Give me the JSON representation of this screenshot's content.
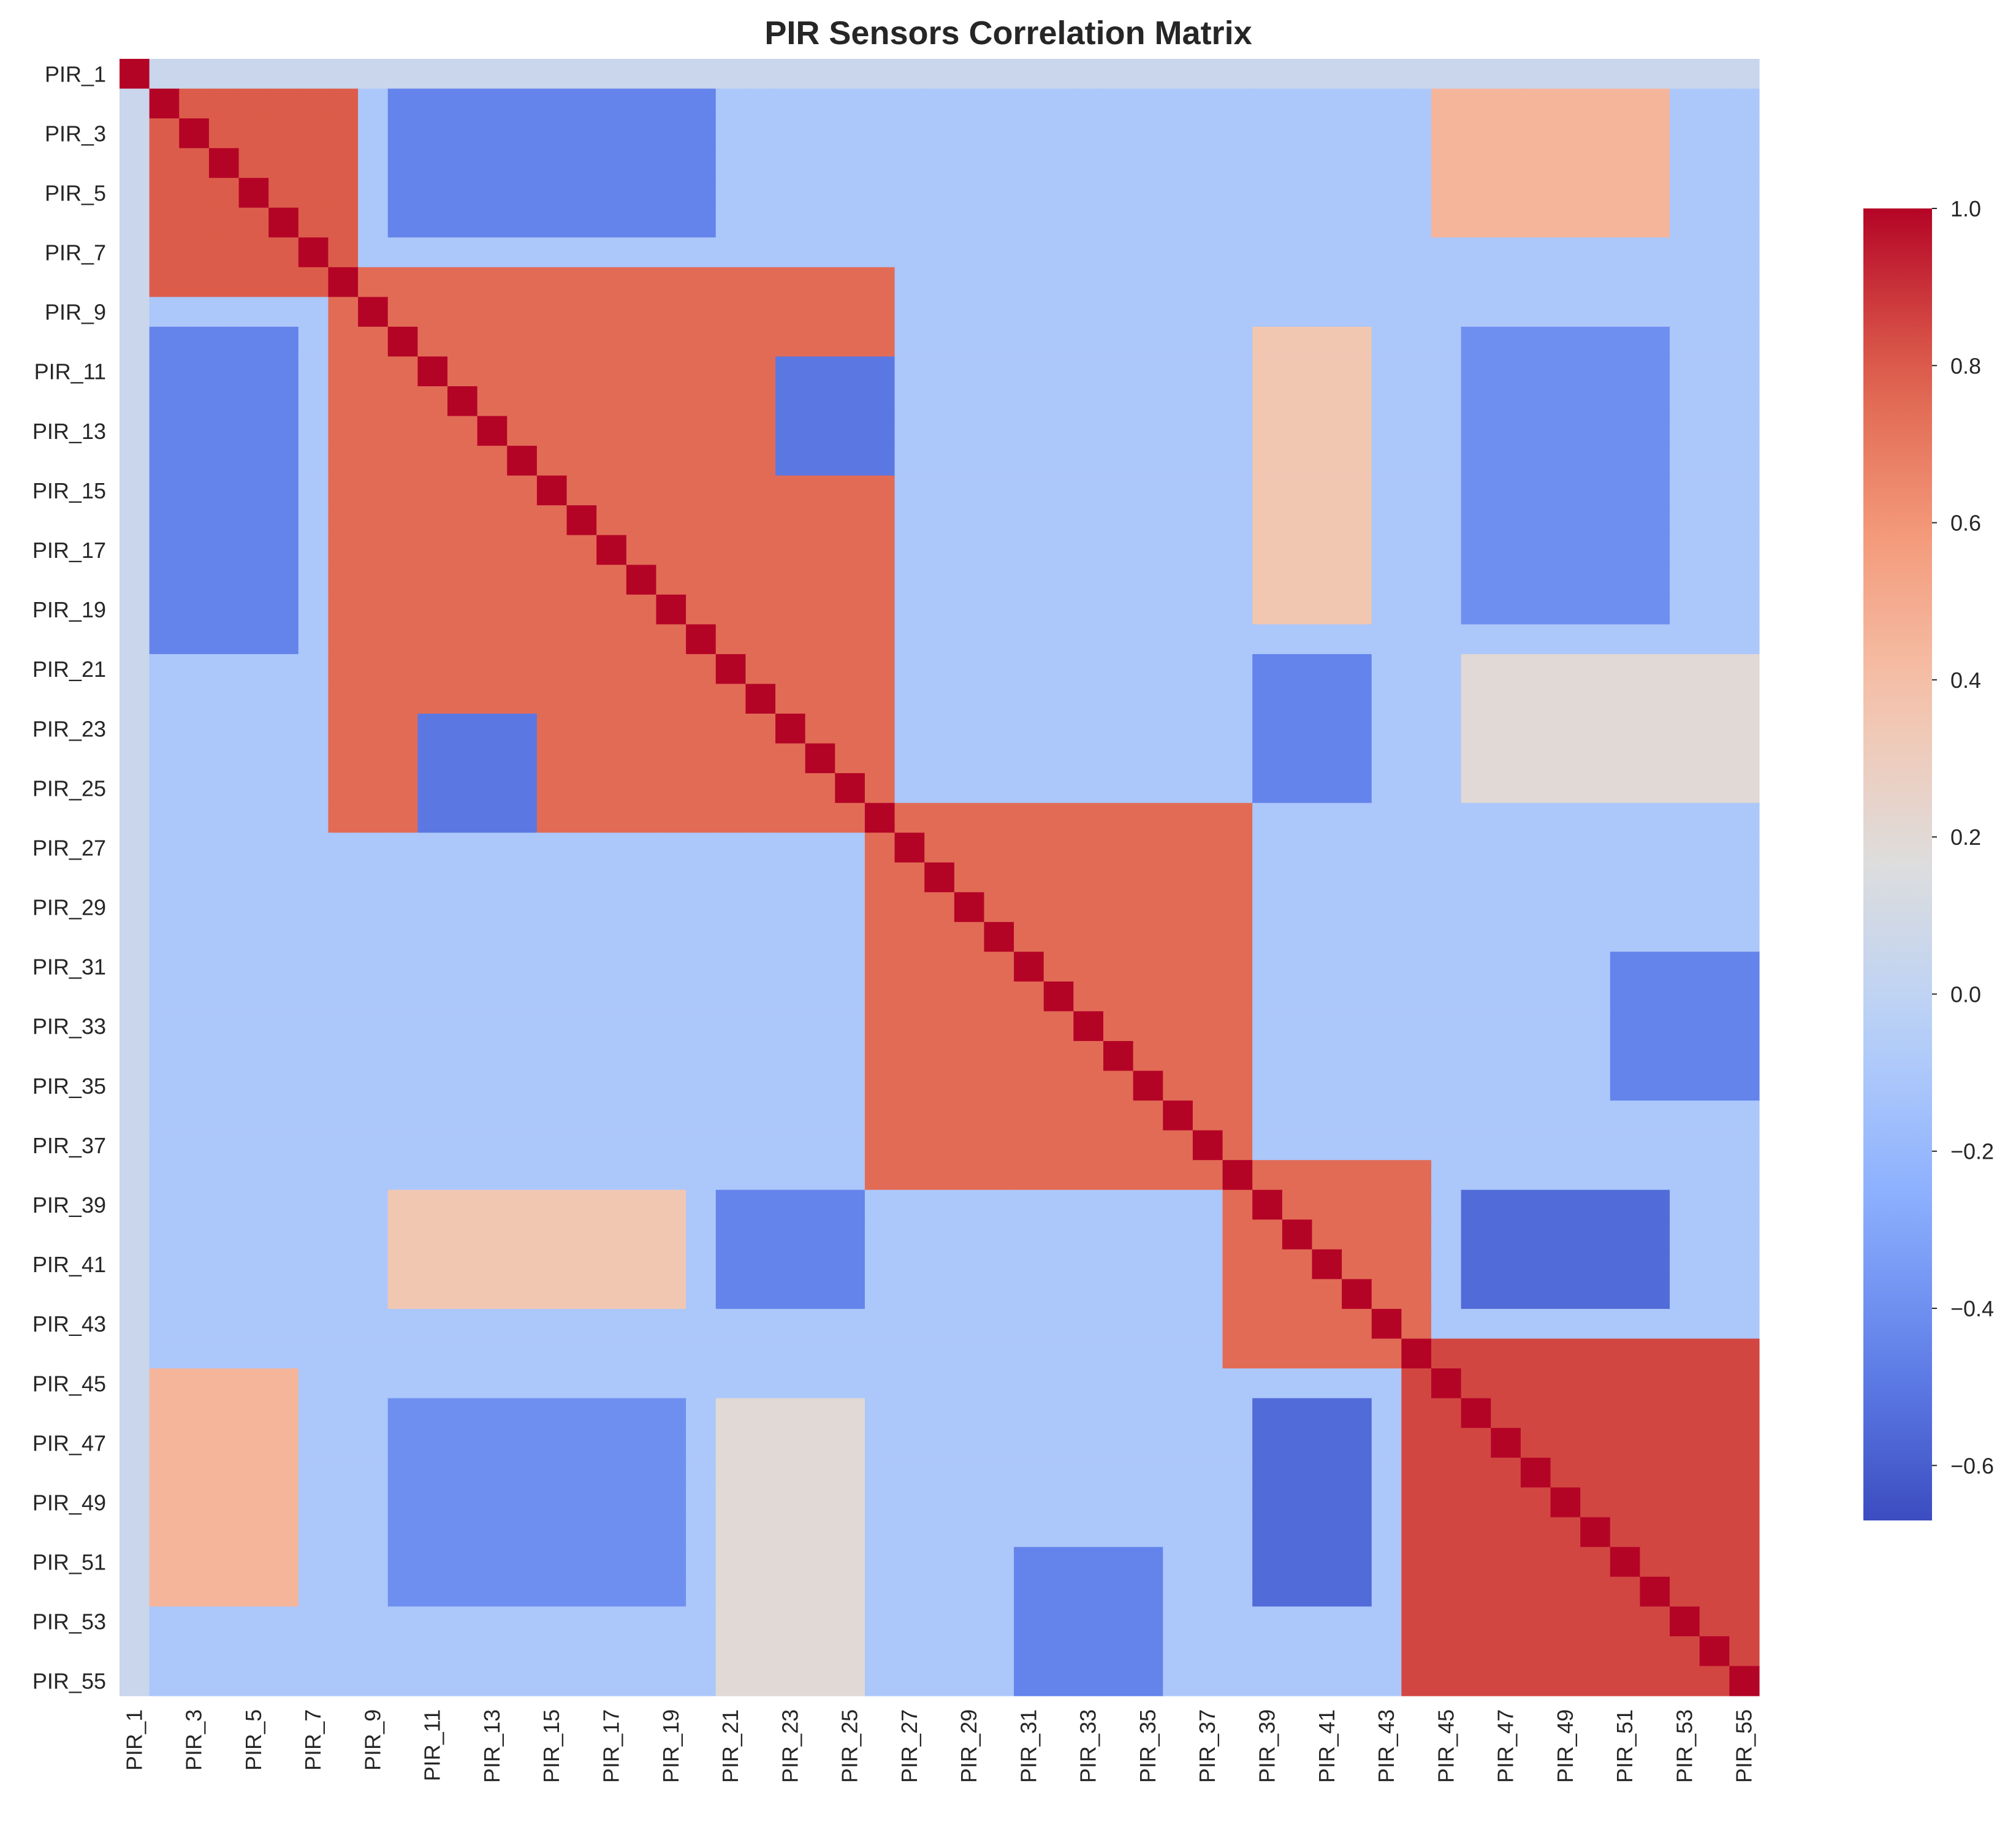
{
  "chart_data": {
    "type": "heatmap",
    "title": "PIR Sensors Correlation Matrix",
    "xlabel": "",
    "ylabel": "",
    "colormap": "coolwarm",
    "colorbar": {
      "vmin": -0.67,
      "vmax": 1.0,
      "ticks": [
        1.0,
        0.8,
        0.6,
        0.4,
        0.2,
        0.0,
        -0.2,
        -0.4,
        -0.6
      ],
      "tick_labels": [
        "1.0",
        "0.8",
        "0.6",
        "0.4",
        "0.2",
        "0.0",
        "−0.2",
        "−0.4",
        "−0.6"
      ]
    },
    "row_count": 55,
    "column_count": 55,
    "labels": [
      "PIR_1",
      "PIR_2",
      "PIR_3",
      "PIR_4",
      "PIR_5",
      "PIR_6",
      "PIR_7",
      "PIR_8",
      "PIR_9",
      "PIR_10",
      "PIR_11",
      "PIR_12",
      "PIR_13",
      "PIR_14",
      "PIR_15",
      "PIR_16",
      "PIR_17",
      "PIR_18",
      "PIR_19",
      "PIR_20",
      "PIR_21",
      "PIR_22",
      "PIR_23",
      "PIR_24",
      "PIR_25",
      "PIR_26",
      "PIR_27",
      "PIR_28",
      "PIR_29",
      "PIR_30",
      "PIR_31",
      "PIR_32",
      "PIR_33",
      "PIR_34",
      "PIR_35",
      "PIR_36",
      "PIR_37",
      "PIR_38",
      "PIR_39",
      "PIR_40",
      "PIR_41",
      "PIR_42",
      "PIR_43",
      "PIR_44",
      "PIR_45",
      "PIR_46",
      "PIR_47",
      "PIR_48",
      "PIR_49",
      "PIR_50",
      "PIR_51",
      "PIR_52",
      "PIR_53",
      "PIR_54",
      "PIR_55"
    ],
    "tick_labels_shown": [
      "PIR_1",
      "PIR_3",
      "PIR_5",
      "PIR_7",
      "PIR_9",
      "PIR_11",
      "PIR_13",
      "PIR_15",
      "PIR_17",
      "PIR_19",
      "PIR_21",
      "PIR_23",
      "PIR_25",
      "PIR_27",
      "PIR_29",
      "PIR_31",
      "PIR_33",
      "PIR_35",
      "PIR_37",
      "PIR_39",
      "PIR_41",
      "PIR_43",
      "PIR_45",
      "PIR_47",
      "PIR_49",
      "PIR_51",
      "PIR_53",
      "PIR_55"
    ],
    "diagonal_value": 1.0,
    "blocks": [
      {
        "rows": [
          "PIR_2",
          "PIR_8"
        ],
        "cols": [
          "PIR_2",
          "PIR_8"
        ],
        "value": 0.8
      },
      {
        "rows": [
          "PIR_8",
          "PIR_26"
        ],
        "cols": [
          "PIR_8",
          "PIR_26"
        ],
        "value": 0.75
      },
      {
        "rows": [
          "PIR_26",
          "PIR_38"
        ],
        "cols": [
          "PIR_26",
          "PIR_38"
        ],
        "value": 0.75
      },
      {
        "rows": [
          "PIR_38",
          "PIR_44"
        ],
        "cols": [
          "PIR_38",
          "PIR_44"
        ],
        "value": 0.75
      },
      {
        "rows": [
          "PIR_44",
          "PIR_55"
        ],
        "cols": [
          "PIR_44",
          "PIR_55"
        ],
        "value": 0.85
      },
      {
        "rows": [
          "PIR_2",
          "PIR_6"
        ],
        "cols": [
          "PIR_45",
          "PIR_52"
        ],
        "value": 0.45
      },
      {
        "rows": [
          "PIR_2",
          "PIR_6"
        ],
        "cols": [
          "PIR_10",
          "PIR_20"
        ],
        "value": -0.45
      },
      {
        "rows": [
          "PIR_10",
          "PIR_19"
        ],
        "cols": [
          "PIR_46",
          "PIR_52"
        ],
        "value": -0.4
      },
      {
        "rows": [
          "PIR_10",
          "PIR_19"
        ],
        "cols": [
          "PIR_39",
          "PIR_42"
        ],
        "value": 0.35
      },
      {
        "rows": [
          "PIR_21",
          "PIR_25"
        ],
        "cols": [
          "PIR_39",
          "PIR_42"
        ],
        "value": -0.45
      },
      {
        "rows": [
          "PIR_21",
          "PIR_25"
        ],
        "cols": [
          "PIR_46",
          "PIR_55"
        ],
        "value": 0.2
      },
      {
        "rows": [
          "PIR_31",
          "PIR_35"
        ],
        "cols": [
          "PIR_51",
          "PIR_55"
        ],
        "value": -0.45
      },
      {
        "rows": [
          "PIR_39",
          "PIR_42"
        ],
        "cols": [
          "PIR_46",
          "PIR_52"
        ],
        "value": -0.55
      },
      {
        "rows": [
          "PIR_11",
          "PIR_14"
        ],
        "cols": [
          "PIR_23",
          "PIR_26"
        ],
        "value": -0.5
      },
      {
        "rows": [
          "PIR_1",
          "PIR_1"
        ],
        "cols": [
          "PIR_2",
          "PIR_55"
        ],
        "value": 0.05
      }
    ],
    "background_value": -0.1,
    "grid": false,
    "legend": "colorbar-right"
  }
}
